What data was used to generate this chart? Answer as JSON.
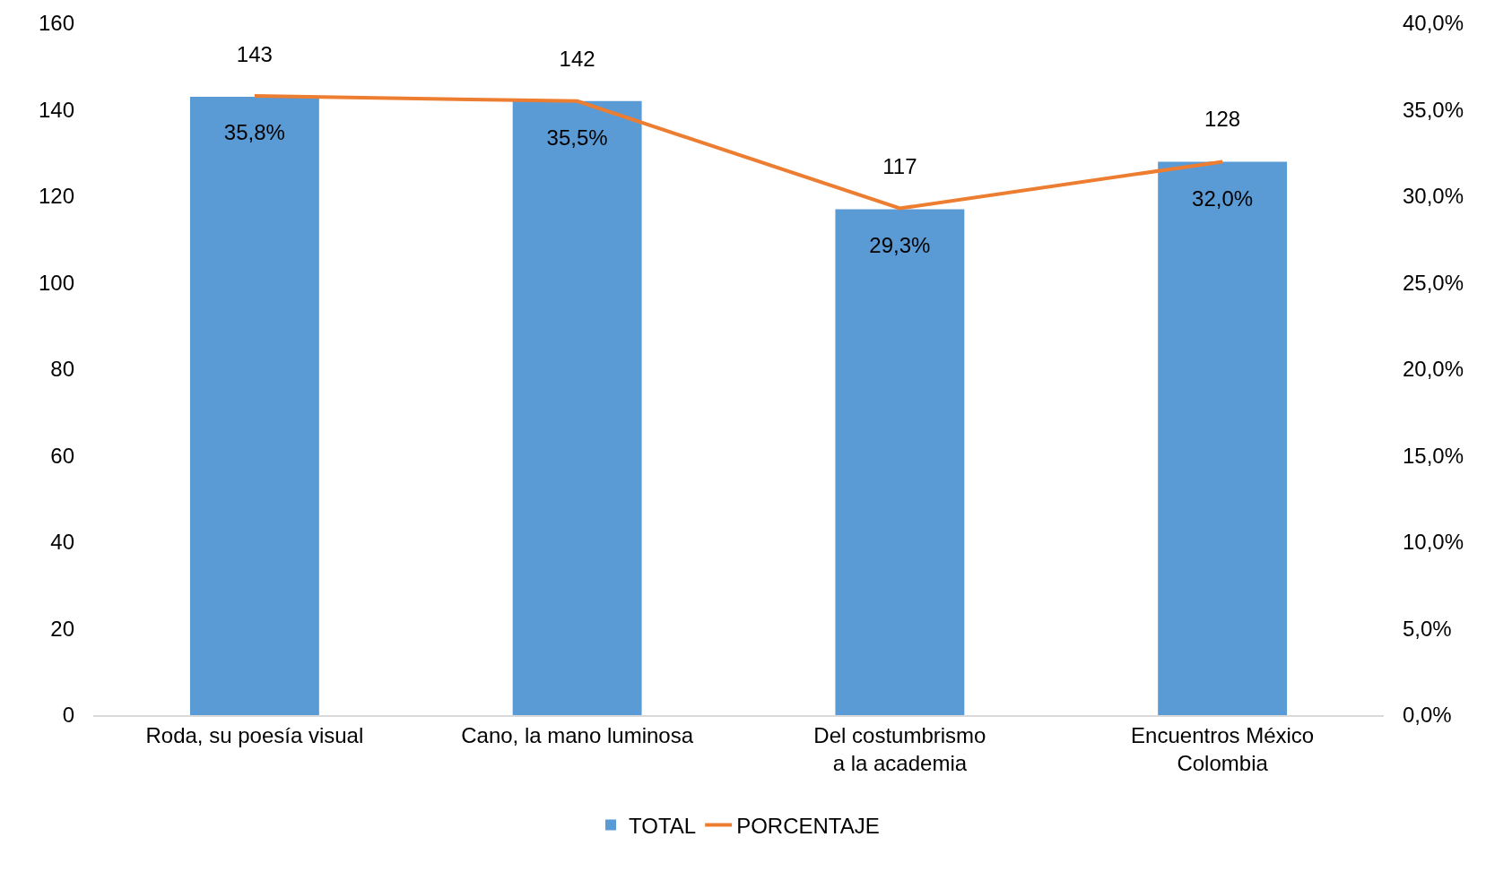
{
  "chart_data": {
    "type": "bar",
    "categories": [
      "Roda, su poesía visual",
      "Cano, la mano luminosa",
      "Del costumbrismo a la academia",
      "Encuentros México Colombia"
    ],
    "series": [
      {
        "name": "TOTAL",
        "color": "#5b9bd5",
        "values": [
          143,
          142,
          117,
          128
        ],
        "value_labels": [
          "143",
          "142",
          "117",
          "128"
        ]
      },
      {
        "name": "PORCENTAJE",
        "type": "line",
        "axis": "y2",
        "color": "#ed7d31",
        "values": [
          35.8,
          35.5,
          29.3,
          32.0
        ],
        "value_labels": [
          "35,8%",
          "35,5%",
          "29,3%",
          "32,0%"
        ]
      }
    ],
    "ylim": [
      0,
      160
    ],
    "yticks": [
      0,
      20,
      40,
      60,
      80,
      100,
      120,
      140,
      160
    ],
    "y2lim": [
      0,
      40
    ],
    "y2ticks": [
      {
        "value": 0,
        "label": "0,0%"
      },
      {
        "value": 5,
        "label": "5,0%"
      },
      {
        "value": 10,
        "label": "10,0%"
      },
      {
        "value": 15,
        "label": "15,0%"
      },
      {
        "value": 20,
        "label": "20,0%"
      },
      {
        "value": 25,
        "label": "25,0%"
      },
      {
        "value": 30,
        "label": "30,0%"
      },
      {
        "value": 35,
        "label": "35,0%"
      },
      {
        "value": 40,
        "label": "40,0%"
      }
    ],
    "grid": false,
    "legend": "bottom",
    "marker": "none",
    "line_style": "solid"
  }
}
